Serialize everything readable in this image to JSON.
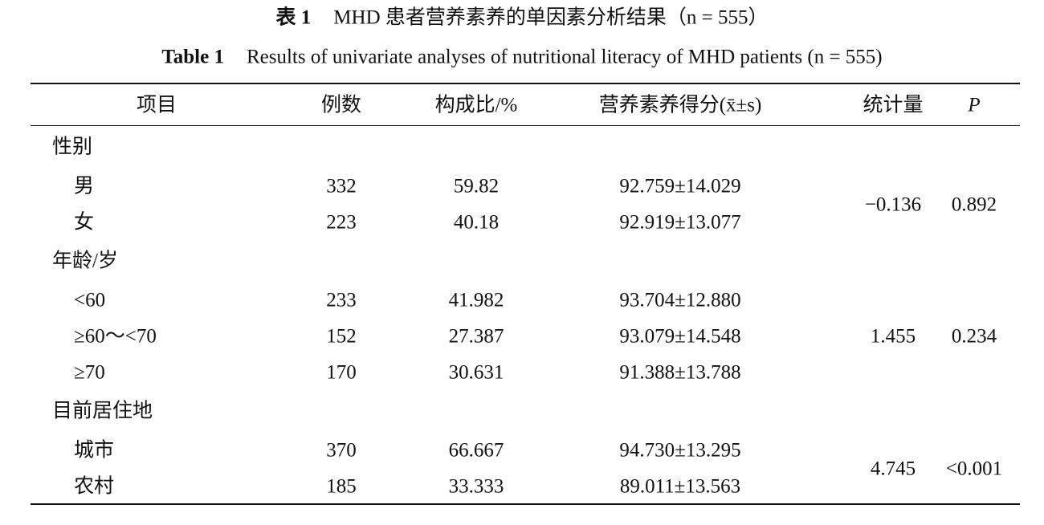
{
  "caption_cn": {
    "label": "表 1",
    "text": "MHD 患者营养素养的单因素分析结果（n = 555）"
  },
  "caption_en": {
    "label": "Table 1",
    "text": "Results of univariate analyses of nutritional literacy of MHD patients (n = 555)"
  },
  "table": {
    "header": [
      "项目",
      "例数",
      "构成比/%",
      "营养素养得分(x̄±s)",
      "统计量",
      "P"
    ],
    "groups": [
      {
        "name": "性别",
        "rows": [
          [
            "男",
            "332",
            "59.82",
            "92.759±14.029"
          ],
          [
            "女",
            "223",
            "40.18",
            "92.919±13.077"
          ]
        ],
        "statistic": "−0.136",
        "p": "0.892"
      },
      {
        "name": "年龄/岁",
        "rows": [
          [
            "<60",
            "233",
            "41.982",
            "93.704±12.880"
          ],
          [
            "≥60～<70",
            "152",
            "27.387",
            "93.079±14.548"
          ],
          [
            "≥70",
            "170",
            "30.631",
            "91.388±13.788"
          ]
        ],
        "statistic": "1.455",
        "p": "0.234"
      },
      {
        "name": "目前居住地",
        "rows": [
          [
            "城市",
            "370",
            "66.667",
            "94.730±13.295"
          ],
          [
            "农村",
            "185",
            "33.333",
            "89.011±13.563"
          ]
        ],
        "statistic": "4.745",
        "p": "<0.001"
      }
    ]
  }
}
